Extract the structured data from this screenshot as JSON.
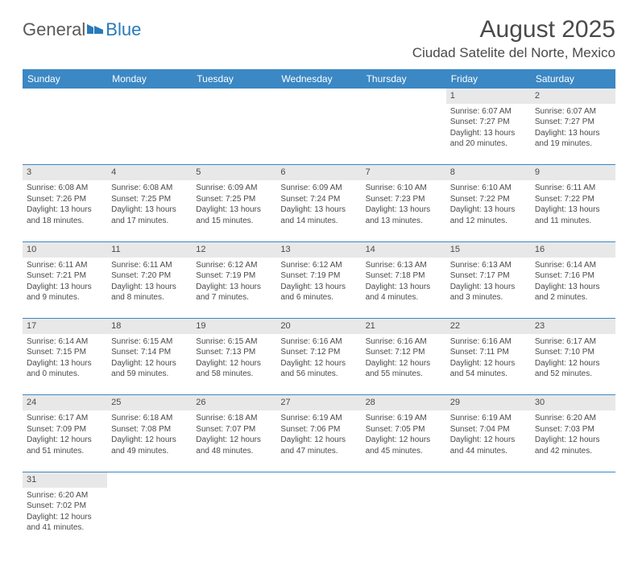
{
  "logo": {
    "text_general": "General",
    "text_blue": "Blue"
  },
  "title": "August 2025",
  "location": "Ciudad Satelite del Norte, Mexico",
  "colors": {
    "header_bg": "#3b88c4",
    "header_text": "#ffffff",
    "daynum_bg": "#e8e8e8",
    "text": "#4a4a4a",
    "rule": "#3b88c4",
    "logo_gray": "#5a5a5a",
    "logo_blue": "#2a7ab8"
  },
  "day_headers": [
    "Sunday",
    "Monday",
    "Tuesday",
    "Wednesday",
    "Thursday",
    "Friday",
    "Saturday"
  ],
  "weeks": [
    [
      null,
      null,
      null,
      null,
      null,
      {
        "n": "1",
        "sunrise": "Sunrise: 6:07 AM",
        "sunset": "Sunset: 7:27 PM",
        "daylight1": "Daylight: 13 hours",
        "daylight2": "and 20 minutes."
      },
      {
        "n": "2",
        "sunrise": "Sunrise: 6:07 AM",
        "sunset": "Sunset: 7:27 PM",
        "daylight1": "Daylight: 13 hours",
        "daylight2": "and 19 minutes."
      }
    ],
    [
      {
        "n": "3",
        "sunrise": "Sunrise: 6:08 AM",
        "sunset": "Sunset: 7:26 PM",
        "daylight1": "Daylight: 13 hours",
        "daylight2": "and 18 minutes."
      },
      {
        "n": "4",
        "sunrise": "Sunrise: 6:08 AM",
        "sunset": "Sunset: 7:25 PM",
        "daylight1": "Daylight: 13 hours",
        "daylight2": "and 17 minutes."
      },
      {
        "n": "5",
        "sunrise": "Sunrise: 6:09 AM",
        "sunset": "Sunset: 7:25 PM",
        "daylight1": "Daylight: 13 hours",
        "daylight2": "and 15 minutes."
      },
      {
        "n": "6",
        "sunrise": "Sunrise: 6:09 AM",
        "sunset": "Sunset: 7:24 PM",
        "daylight1": "Daylight: 13 hours",
        "daylight2": "and 14 minutes."
      },
      {
        "n": "7",
        "sunrise": "Sunrise: 6:10 AM",
        "sunset": "Sunset: 7:23 PM",
        "daylight1": "Daylight: 13 hours",
        "daylight2": "and 13 minutes."
      },
      {
        "n": "8",
        "sunrise": "Sunrise: 6:10 AM",
        "sunset": "Sunset: 7:22 PM",
        "daylight1": "Daylight: 13 hours",
        "daylight2": "and 12 minutes."
      },
      {
        "n": "9",
        "sunrise": "Sunrise: 6:11 AM",
        "sunset": "Sunset: 7:22 PM",
        "daylight1": "Daylight: 13 hours",
        "daylight2": "and 11 minutes."
      }
    ],
    [
      {
        "n": "10",
        "sunrise": "Sunrise: 6:11 AM",
        "sunset": "Sunset: 7:21 PM",
        "daylight1": "Daylight: 13 hours",
        "daylight2": "and 9 minutes."
      },
      {
        "n": "11",
        "sunrise": "Sunrise: 6:11 AM",
        "sunset": "Sunset: 7:20 PM",
        "daylight1": "Daylight: 13 hours",
        "daylight2": "and 8 minutes."
      },
      {
        "n": "12",
        "sunrise": "Sunrise: 6:12 AM",
        "sunset": "Sunset: 7:19 PM",
        "daylight1": "Daylight: 13 hours",
        "daylight2": "and 7 minutes."
      },
      {
        "n": "13",
        "sunrise": "Sunrise: 6:12 AM",
        "sunset": "Sunset: 7:19 PM",
        "daylight1": "Daylight: 13 hours",
        "daylight2": "and 6 minutes."
      },
      {
        "n": "14",
        "sunrise": "Sunrise: 6:13 AM",
        "sunset": "Sunset: 7:18 PM",
        "daylight1": "Daylight: 13 hours",
        "daylight2": "and 4 minutes."
      },
      {
        "n": "15",
        "sunrise": "Sunrise: 6:13 AM",
        "sunset": "Sunset: 7:17 PM",
        "daylight1": "Daylight: 13 hours",
        "daylight2": "and 3 minutes."
      },
      {
        "n": "16",
        "sunrise": "Sunrise: 6:14 AM",
        "sunset": "Sunset: 7:16 PM",
        "daylight1": "Daylight: 13 hours",
        "daylight2": "and 2 minutes."
      }
    ],
    [
      {
        "n": "17",
        "sunrise": "Sunrise: 6:14 AM",
        "sunset": "Sunset: 7:15 PM",
        "daylight1": "Daylight: 13 hours",
        "daylight2": "and 0 minutes."
      },
      {
        "n": "18",
        "sunrise": "Sunrise: 6:15 AM",
        "sunset": "Sunset: 7:14 PM",
        "daylight1": "Daylight: 12 hours",
        "daylight2": "and 59 minutes."
      },
      {
        "n": "19",
        "sunrise": "Sunrise: 6:15 AM",
        "sunset": "Sunset: 7:13 PM",
        "daylight1": "Daylight: 12 hours",
        "daylight2": "and 58 minutes."
      },
      {
        "n": "20",
        "sunrise": "Sunrise: 6:16 AM",
        "sunset": "Sunset: 7:12 PM",
        "daylight1": "Daylight: 12 hours",
        "daylight2": "and 56 minutes."
      },
      {
        "n": "21",
        "sunrise": "Sunrise: 6:16 AM",
        "sunset": "Sunset: 7:12 PM",
        "daylight1": "Daylight: 12 hours",
        "daylight2": "and 55 minutes."
      },
      {
        "n": "22",
        "sunrise": "Sunrise: 6:16 AM",
        "sunset": "Sunset: 7:11 PM",
        "daylight1": "Daylight: 12 hours",
        "daylight2": "and 54 minutes."
      },
      {
        "n": "23",
        "sunrise": "Sunrise: 6:17 AM",
        "sunset": "Sunset: 7:10 PM",
        "daylight1": "Daylight: 12 hours",
        "daylight2": "and 52 minutes."
      }
    ],
    [
      {
        "n": "24",
        "sunrise": "Sunrise: 6:17 AM",
        "sunset": "Sunset: 7:09 PM",
        "daylight1": "Daylight: 12 hours",
        "daylight2": "and 51 minutes."
      },
      {
        "n": "25",
        "sunrise": "Sunrise: 6:18 AM",
        "sunset": "Sunset: 7:08 PM",
        "daylight1": "Daylight: 12 hours",
        "daylight2": "and 49 minutes."
      },
      {
        "n": "26",
        "sunrise": "Sunrise: 6:18 AM",
        "sunset": "Sunset: 7:07 PM",
        "daylight1": "Daylight: 12 hours",
        "daylight2": "and 48 minutes."
      },
      {
        "n": "27",
        "sunrise": "Sunrise: 6:19 AM",
        "sunset": "Sunset: 7:06 PM",
        "daylight1": "Daylight: 12 hours",
        "daylight2": "and 47 minutes."
      },
      {
        "n": "28",
        "sunrise": "Sunrise: 6:19 AM",
        "sunset": "Sunset: 7:05 PM",
        "daylight1": "Daylight: 12 hours",
        "daylight2": "and 45 minutes."
      },
      {
        "n": "29",
        "sunrise": "Sunrise: 6:19 AM",
        "sunset": "Sunset: 7:04 PM",
        "daylight1": "Daylight: 12 hours",
        "daylight2": "and 44 minutes."
      },
      {
        "n": "30",
        "sunrise": "Sunrise: 6:20 AM",
        "sunset": "Sunset: 7:03 PM",
        "daylight1": "Daylight: 12 hours",
        "daylight2": "and 42 minutes."
      }
    ],
    [
      {
        "n": "31",
        "sunrise": "Sunrise: 6:20 AM",
        "sunset": "Sunset: 7:02 PM",
        "daylight1": "Daylight: 12 hours",
        "daylight2": "and 41 minutes."
      },
      null,
      null,
      null,
      null,
      null,
      null
    ]
  ]
}
